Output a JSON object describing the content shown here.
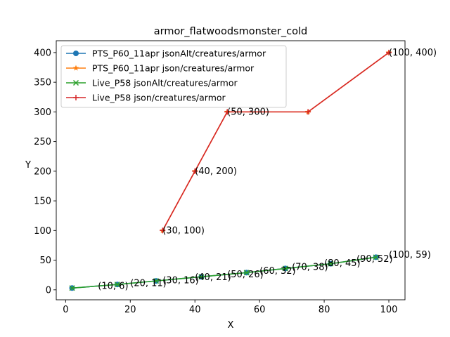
{
  "chart_data": {
    "type": "line",
    "title": "armor_flatwoodsmonster_cold",
    "xlabel": "X",
    "ylabel": "Y",
    "xlim": [
      -2.9,
      105
    ],
    "ylim": [
      -16.8,
      420
    ],
    "xticks": [
      0,
      20,
      40,
      60,
      80,
      100
    ],
    "yticks": [
      0,
      50,
      100,
      150,
      200,
      250,
      300,
      350,
      400
    ],
    "legend_position": "top-left",
    "grid": false,
    "series": [
      {
        "name": "PTS_P60_11apr jsonAlt/creatures/armor",
        "color": "#1f77b4",
        "marker": "circle",
        "x": [
          2,
          16,
          28,
          42,
          56,
          68,
          82,
          96
        ],
        "y": [
          3,
          9,
          15,
          22,
          29,
          36,
          44,
          55
        ]
      },
      {
        "name": "PTS_P60_11apr json/creatures/armor",
        "color": "#ff7f0e",
        "marker": "star",
        "x": [
          30,
          40,
          50,
          75,
          100
        ],
        "y": [
          100,
          200,
          300,
          300,
          400
        ]
      },
      {
        "name": "Live_P58 jsonAlt/creatures/armor",
        "color": "#2ca02c",
        "marker": "x",
        "x": [
          2,
          16,
          28,
          42,
          56,
          68,
          82,
          96
        ],
        "y": [
          3,
          9,
          15,
          22,
          29,
          36,
          44,
          55
        ]
      },
      {
        "name": "Live_P58 json/creatures/armor",
        "color": "#d62728",
        "marker": "plus",
        "x": [
          30,
          40,
          50,
          75,
          100
        ],
        "y": [
          100,
          200,
          300,
          300,
          400
        ]
      }
    ],
    "annotations": [
      {
        "text": "(10, 6)",
        "x": 10,
        "y": 6
      },
      {
        "text": "(20, 11)",
        "x": 20,
        "y": 11
      },
      {
        "text": "(30, 16)",
        "x": 30,
        "y": 16
      },
      {
        "text": "(40, 21)",
        "x": 40,
        "y": 21
      },
      {
        "text": "(50, 26)",
        "x": 50,
        "y": 26
      },
      {
        "text": "(60, 32)",
        "x": 60,
        "y": 32
      },
      {
        "text": "(70, 38)",
        "x": 70,
        "y": 38
      },
      {
        "text": "(80, 45)",
        "x": 80,
        "y": 45
      },
      {
        "text": "(90, 52)",
        "x": 90,
        "y": 52
      },
      {
        "text": "(100, 59)",
        "x": 100,
        "y": 59
      },
      {
        "text": "(30, 100)",
        "x": 30,
        "y": 100
      },
      {
        "text": "(40, 200)",
        "x": 40,
        "y": 200
      },
      {
        "text": "(50, 300)",
        "x": 50,
        "y": 300
      },
      {
        "text": "(100, 400)",
        "x": 100,
        "y": 400
      }
    ]
  }
}
